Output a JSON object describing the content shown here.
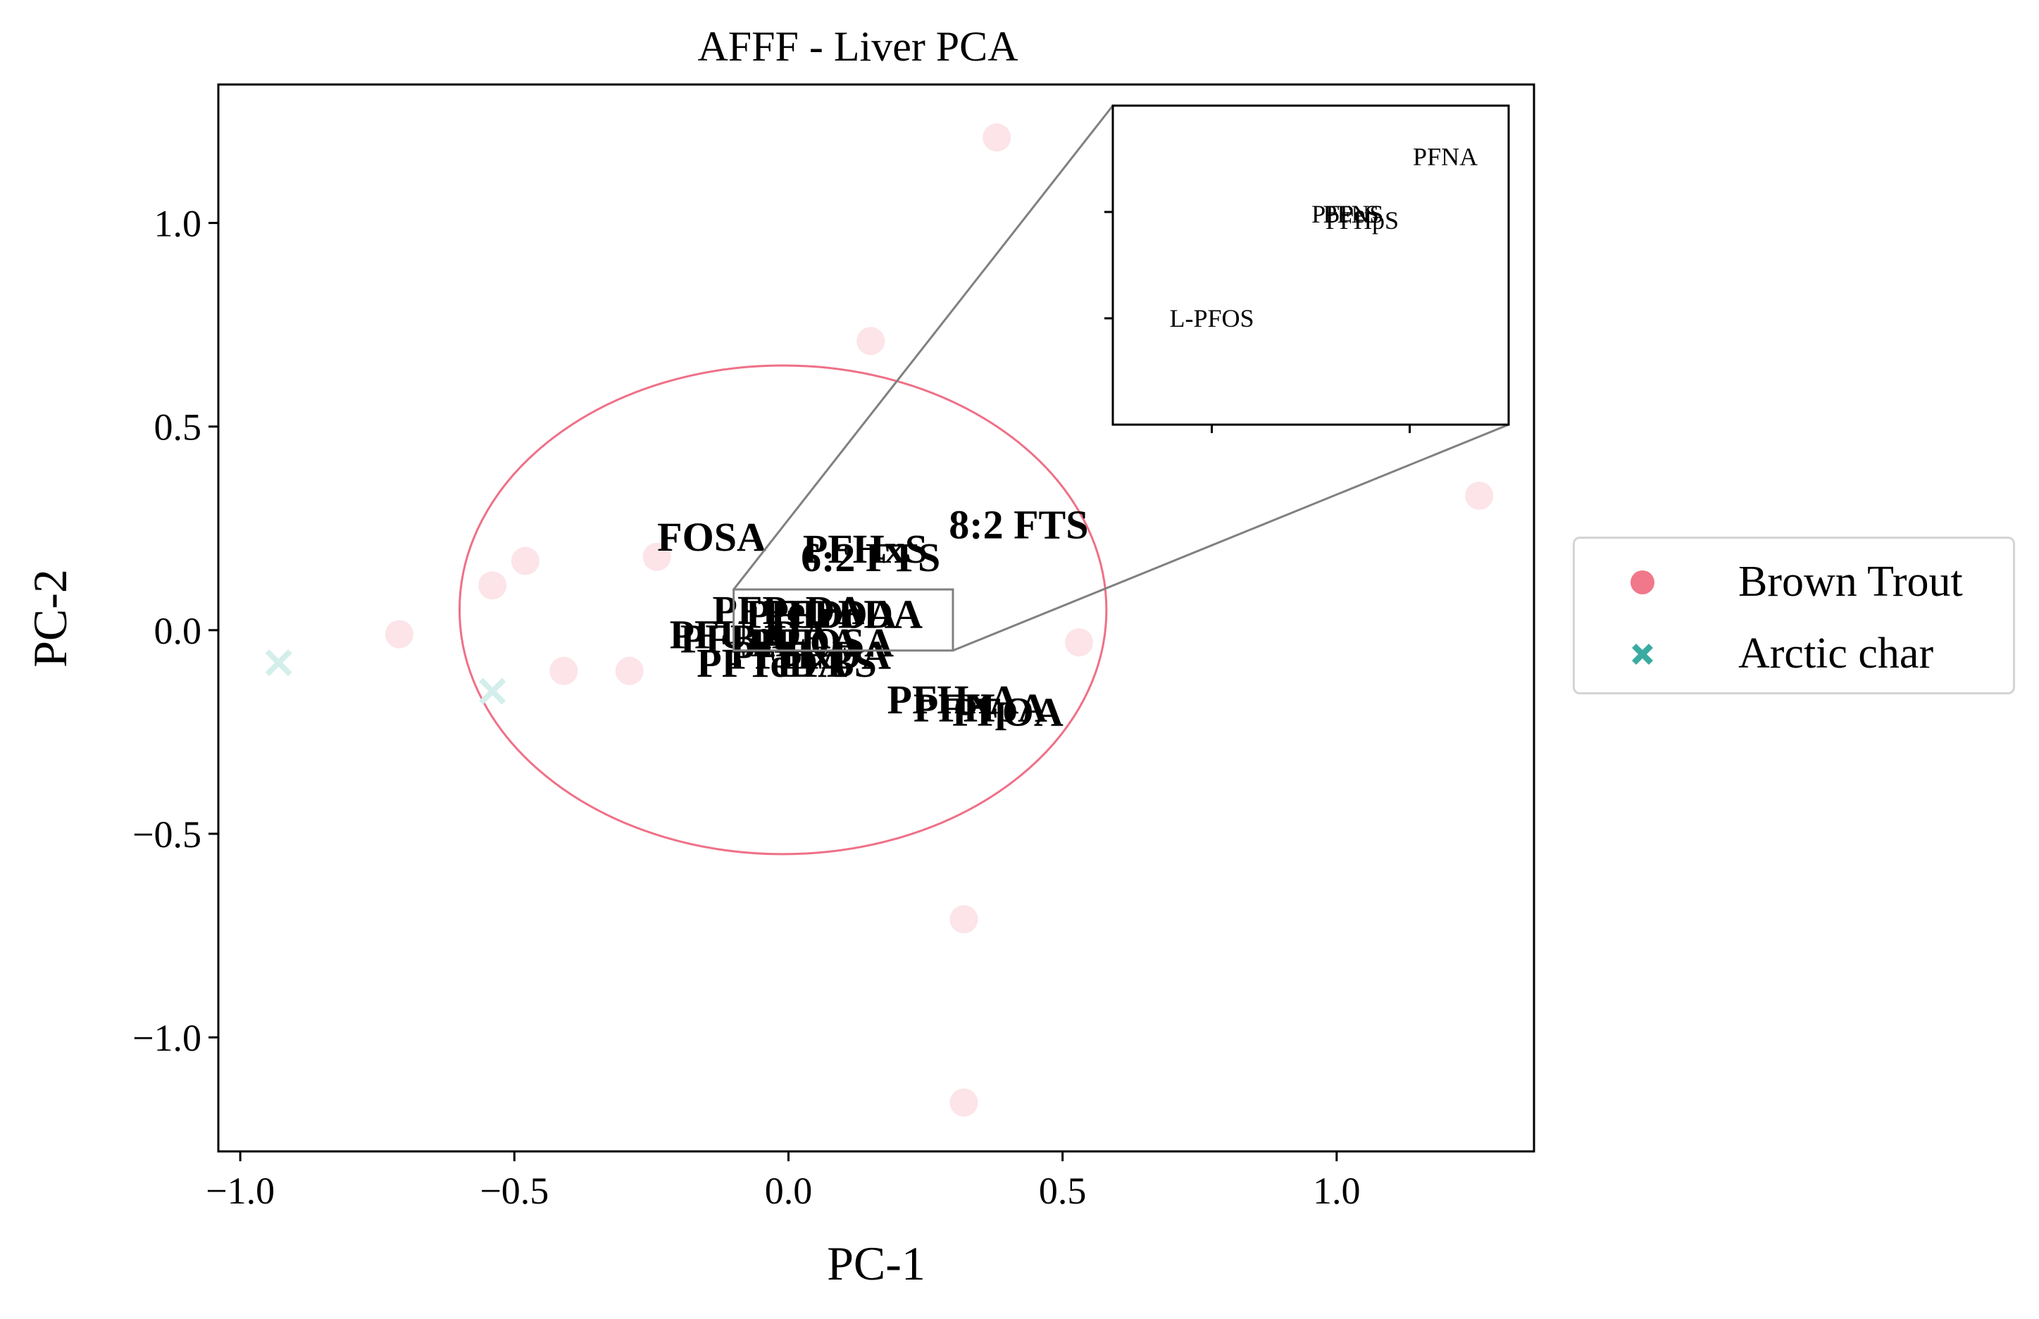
{
  "chart_data": {
    "type": "scatter",
    "title": "AFFF - Liver PCA",
    "xlabel": "PC-1",
    "ylabel": "PC-2",
    "xlim": [
      -1.04,
      1.36
    ],
    "ylim": [
      -1.28,
      1.34
    ],
    "xticks": [
      -1.0,
      -0.5,
      0.0,
      0.5,
      1.0
    ],
    "xtick_labels": [
      "−1.0",
      "−0.5",
      "0.0",
      "0.5",
      "1.0"
    ],
    "yticks": [
      -1.0,
      -0.5,
      0.0,
      0.5,
      1.0
    ],
    "ytick_labels": [
      "−1.0",
      "−0.5",
      "0.0",
      "0.5",
      "1.0"
    ],
    "grid": false,
    "legend_position": "outside-right",
    "series": [
      {
        "name": "Brown Trout",
        "marker": "circle",
        "color": "#f0788a",
        "point_color": "#fce4e8",
        "points": [
          [
            0.38,
            1.21
          ],
          [
            0.15,
            0.71
          ],
          [
            1.26,
            0.33
          ],
          [
            -0.24,
            0.18
          ],
          [
            -0.48,
            0.17
          ],
          [
            -0.54,
            0.11
          ],
          [
            -0.71,
            -0.01
          ],
          [
            -0.41,
            -0.1
          ],
          [
            -0.29,
            -0.1
          ],
          [
            0.53,
            -0.03
          ],
          [
            0.32,
            -0.71
          ],
          [
            0.32,
            -1.16
          ]
        ]
      },
      {
        "name": "Arctic char",
        "marker": "x",
        "color": "#3aaba0",
        "point_color": "#d3eeeb",
        "points": [
          [
            -0.93,
            -0.08
          ],
          [
            -0.54,
            -0.15
          ]
        ]
      }
    ],
    "ellipse": {
      "cx": -0.01,
      "cy": 0.05,
      "rx": 0.59,
      "ry": 0.6,
      "color": "#ef7087"
    },
    "loadings": [
      {
        "label": "8:2 FTS",
        "x": 0.42,
        "y": 0.26
      },
      {
        "label": "FOSA",
        "x": -0.14,
        "y": 0.23
      },
      {
        "label": "PFHxS",
        "x": 0.14,
        "y": 0.2
      },
      {
        "label": "6:2 FTS",
        "x": 0.15,
        "y": 0.18
      },
      {
        "label": "PFPeDA",
        "x": 0.0,
        "y": 0.05
      },
      {
        "label": "PFTrDA",
        "x": 0.06,
        "y": 0.04
      },
      {
        "label": "PFDoDA",
        "x": 0.1,
        "y": 0.04
      },
      {
        "label": "PFUnDA",
        "x": -0.07,
        "y": -0.01
      },
      {
        "label": "PFBA",
        "x": -0.1,
        "y": -0.02
      },
      {
        "label": "PFDA",
        "x": 0.03,
        "y": -0.03
      },
      {
        "label": "PFOSA",
        "x": 0.07,
        "y": -0.03
      },
      {
        "label": "PFHxDA",
        "x": 0.04,
        "y": -0.06
      },
      {
        "label": "PFTeDA",
        "x": -0.03,
        "y": -0.08
      },
      {
        "label": "PFBS",
        "x": 0.07,
        "y": -0.08
      },
      {
        "label": "PFHxA",
        "x": 0.3,
        "y": -0.17
      },
      {
        "label": "PFHpA",
        "x": 0.35,
        "y": -0.19
      },
      {
        "label": "PFOA",
        "x": 0.4,
        "y": -0.2
      }
    ],
    "inset": {
      "xlim": [
        -0.1,
        0.3
      ],
      "ylim": [
        -0.05,
        0.1
      ],
      "xticks": [
        0.0,
        0.2
      ],
      "yticks": [
        0.0,
        0.05
      ],
      "labels": [
        {
          "label": "PFNA",
          "x": 0.236,
          "y": 0.076
        },
        {
          "label": "PFPeS",
          "x": 0.135,
          "y": 0.049
        },
        {
          "label": "PFNS",
          "x": 0.143,
          "y": 0.049
        },
        {
          "label": "PFHpS",
          "x": 0.152,
          "y": 0.046
        },
        {
          "label": "L-PFOS",
          "x": 0.0,
          "y": -0.0
        }
      ]
    }
  }
}
